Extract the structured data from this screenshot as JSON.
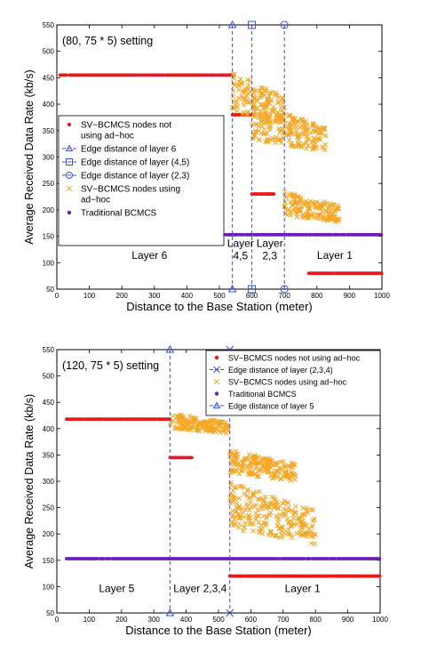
{
  "chart_data": [
    {
      "type": "scatter",
      "title": "",
      "setting_label": "(80, 75 * 5) setting",
      "xlabel": "Distance to the Base Station (meter)",
      "ylabel": "Average Received Data Rate (kb/s)",
      "xlim": [
        0,
        1000
      ],
      "ylim": [
        50,
        550
      ],
      "xticks": [
        "0",
        "100",
        "200",
        "300",
        "400",
        "500",
        "600",
        "700",
        "800",
        "900",
        "1000"
      ],
      "yticks": [
        "50",
        "100",
        "150",
        "200",
        "250",
        "300",
        "350",
        "400",
        "450",
        "500",
        "550"
      ],
      "legend_position": "left",
      "colors": {
        "red": "#e8191e",
        "orange": "#f5a623",
        "purple": "#6a1fb5",
        "blue": "#3b4fd8"
      },
      "legend": [
        {
          "label": "SV-BCMCS nodes not using ad-hoc",
          "lines": [
            "SV−BCMCS nodes not",
            "using ad−hoc"
          ],
          "marker": "dot",
          "color": "#e8191e"
        },
        {
          "label": "Edge distance of layer 6",
          "lines": [
            "Edge distance of layer 6"
          ],
          "marker": "triangle-line",
          "color": "#3b4fd8"
        },
        {
          "label": "Edge distance of layer (4,5)",
          "lines": [
            "Edge distance of layer (4,5)"
          ],
          "marker": "square-line",
          "color": "#3b4fd8"
        },
        {
          "label": "Edge distance of layer (2,3)",
          "lines": [
            "Edge distance of layer (2,3)"
          ],
          "marker": "circle-line",
          "color": "#3b4fd8"
        },
        {
          "label": "SV-BCMCS nodes using ad-hoc",
          "lines": [
            "SV−BCMCS nodes using",
            "ad−hoc"
          ],
          "marker": "x",
          "color": "#f5a623"
        },
        {
          "label": "Traditional BCMCS",
          "lines": [
            "Traditional BCMCS"
          ],
          "marker": "dot",
          "color": "#6a1fb5"
        }
      ],
      "edges": [
        {
          "name": "Edge distance of layer 6",
          "x": 540,
          "marker": "triangle"
        },
        {
          "name": "Edge distance of layer (4,5)",
          "x": 600,
          "marker": "square"
        },
        {
          "name": "Edge distance of layer (2,3)",
          "x": 700,
          "marker": "circle"
        }
      ],
      "region_labels": [
        {
          "lines": [
            "Layer 6"
          ],
          "x": 285,
          "y": 107
        },
        {
          "lines": [
            "Layer",
            "4,5"
          ],
          "x": 565,
          "y": 130
        },
        {
          "lines": [
            "Layer",
            "2,3"
          ],
          "x": 655,
          "y": 130
        },
        {
          "lines": [
            "Layer 1"
          ],
          "x": 855,
          "y": 107
        }
      ],
      "series": [
        {
          "name": "SV-BCMCS nodes not using ad-hoc",
          "marker": "dot",
          "color": "#e8191e",
          "segments": [
            {
              "x": [
                10,
                540
              ],
              "y": 455
            },
            {
              "x": 540,
              "y": 380
            },
            {
              "x": 600,
              "y": 230
            },
            {
              "x": 775,
              "y": 80
            }
          ]
        },
        {
          "name": "SV-BCMCS nodes using ad-hoc",
          "marker": "x",
          "color": "#f5a623",
          "clusters": [
            {
              "x": [
                540,
                700
              ],
              "y": [
                360,
                460
              ]
            },
            {
              "x": [
                600,
                830
              ],
              "y": [
                310,
                400
              ]
            },
            {
              "x": [
                700,
                870
              ],
              "y": [
                175,
                235
              ]
            }
          ]
        },
        {
          "name": "Traditional BCMCS",
          "marker": "dot",
          "color": "#6a1fb5",
          "segments": [
            {
              "x": [
                30,
                1000
              ],
              "y": 153
            }
          ]
        }
      ]
    },
    {
      "type": "scatter",
      "title": "",
      "setting_label": "(120, 75 * 5) setting",
      "xlabel": "Distance to the Base Station (meter)",
      "ylabel": "Average Received Data Rate (kb/s)",
      "xlim": [
        0,
        1000
      ],
      "ylim": [
        50,
        550
      ],
      "xticks": [
        "0",
        "100",
        "200",
        "300",
        "400",
        "500",
        "600",
        "700",
        "800",
        "900",
        "1000"
      ],
      "yticks": [
        "50",
        "100",
        "150",
        "200",
        "250",
        "300",
        "350",
        "400",
        "450",
        "500",
        "550"
      ],
      "legend_position": "top-right",
      "colors": {
        "red": "#e8191e",
        "orange": "#f5a623",
        "purple": "#6a1fb5",
        "blue": "#3b4fd8"
      },
      "legend": [
        {
          "label": "SV-BCMCS nodes not using ad-hoc",
          "lines": [
            "SV−BCMCS nodes not using ad−hoc"
          ],
          "marker": "dot",
          "color": "#e8191e"
        },
        {
          "label": "Edge distance of layer (2,3,4)",
          "lines": [
            "Edge distance of layer (2,3,4)"
          ],
          "marker": "x-line",
          "color": "#3b4fd8"
        },
        {
          "label": "SV-BCMCS nodes using ad-hoc",
          "lines": [
            "SV−BCMCS nodes using ad−hoc"
          ],
          "marker": "x",
          "color": "#f5a623"
        },
        {
          "label": "Traditional BCMCS",
          "lines": [
            "Traditional BCMCS"
          ],
          "marker": "dot",
          "color": "#6a1fb5"
        },
        {
          "label": "Edge distance of layer 5",
          "lines": [
            "Edge distance of layer 5"
          ],
          "marker": "triangle-line",
          "color": "#3b4fd8"
        }
      ],
      "edges": [
        {
          "name": "Edge distance of layer 5",
          "x": 350,
          "marker": "triangle"
        },
        {
          "name": "Edge distance of layer (2,3,4)",
          "x": 535,
          "marker": "x"
        }
      ],
      "region_labels": [
        {
          "lines": [
            "Layer 5"
          ],
          "x": 185,
          "y": 90
        },
        {
          "lines": [
            "Layer 2,3,4"
          ],
          "x": 443,
          "y": 90
        },
        {
          "lines": [
            "Layer 1"
          ],
          "x": 760,
          "y": 90
        }
      ],
      "series": [
        {
          "name": "SV-BCMCS nodes not using ad-hoc",
          "marker": "dot",
          "color": "#e8191e",
          "segments": [
            {
              "x": [
                30,
                350
              ],
              "y": 418
            },
            {
              "x": 350,
              "y": 345
            },
            {
              "x": 535,
              "y": 120
            }
          ]
        },
        {
          "name": "SV-BCMCS nodes using ad-hoc",
          "marker": "x",
          "color": "#f5a623",
          "clusters": [
            {
              "x": [
                350,
                530
              ],
              "y": [
                390,
                430
              ]
            },
            {
              "x": [
                535,
                740
              ],
              "y": [
                300,
                360
              ]
            },
            {
              "x": [
                535,
                800
              ],
              "y": [
                180,
                300
              ]
            }
          ]
        },
        {
          "name": "Traditional BCMCS",
          "marker": "dot",
          "color": "#6a1fb5",
          "segments": [
            {
              "x": [
                30,
                1000
              ],
              "y": 153
            }
          ]
        }
      ]
    }
  ]
}
